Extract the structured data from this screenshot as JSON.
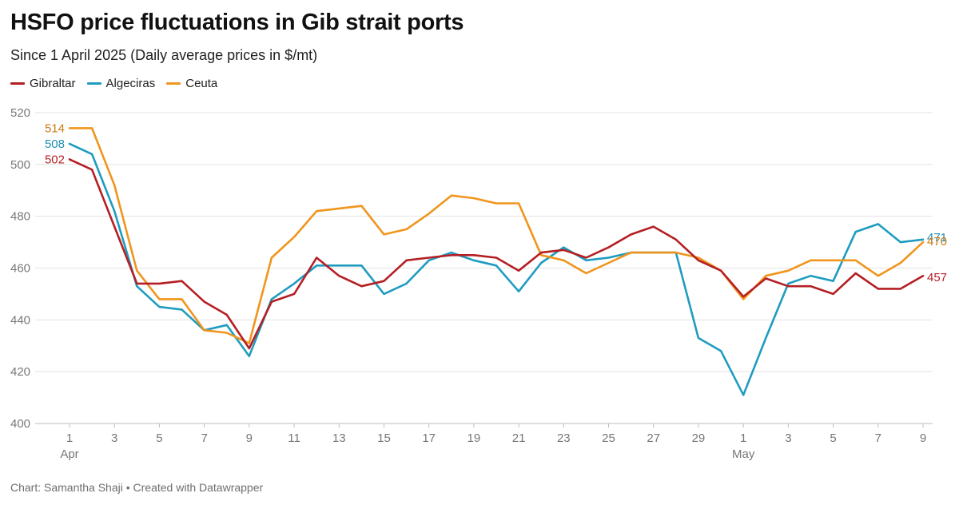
{
  "header": {
    "title": "HSFO price fluctuations in Gib strait ports",
    "subtitle": "Since 1 April 2025 (Daily average prices in $/mt)"
  },
  "footer": {
    "credit": "Chart: Samantha Shaji • Created with Datawrapper"
  },
  "chart_data": {
    "type": "line",
    "title": "HSFO price fluctuations in Gib strait ports",
    "subtitle": "Since 1 April 2025 (Daily average prices in $/mt)",
    "xlabel": "",
    "ylabel": "",
    "ylim": [
      400,
      520
    ],
    "yticks": [
      400,
      420,
      440,
      460,
      480,
      500,
      520
    ],
    "grid": true,
    "legend_position": "top-left",
    "x": [
      "Apr 1",
      "Apr 2",
      "Apr 3",
      "Apr 4",
      "Apr 5",
      "Apr 6",
      "Apr 7",
      "Apr 8",
      "Apr 9",
      "Apr 10",
      "Apr 11",
      "Apr 12",
      "Apr 13",
      "Apr 14",
      "Apr 15",
      "Apr 16",
      "Apr 17",
      "Apr 18",
      "Apr 19",
      "Apr 20",
      "Apr 21",
      "Apr 22",
      "Apr 23",
      "Apr 24",
      "Apr 25",
      "Apr 26",
      "Apr 27",
      "Apr 28",
      "Apr 29",
      "Apr 30",
      "May 1",
      "May 2",
      "May 3",
      "May 4",
      "May 5",
      "May 6",
      "May 7",
      "May 8",
      "May 9"
    ],
    "xtick_labels": [
      "1",
      "3",
      "5",
      "7",
      "9",
      "11",
      "13",
      "15",
      "17",
      "19",
      "21",
      "23",
      "25",
      "27",
      "29",
      "1",
      "3",
      "5",
      "7",
      "9"
    ],
    "xtick_indices": [
      0,
      2,
      4,
      6,
      8,
      10,
      12,
      14,
      16,
      18,
      20,
      22,
      24,
      26,
      28,
      30,
      32,
      34,
      36,
      38
    ],
    "month_labels": [
      {
        "label": "Apr",
        "index": 0
      },
      {
        "label": "May",
        "index": 30
      }
    ],
    "series": [
      {
        "name": "Gibraltar",
        "color": "#b51f24",
        "values": [
          502,
          498,
          476,
          454,
          454,
          455,
          447,
          442,
          429,
          447,
          450,
          464,
          457,
          453,
          455,
          463,
          464,
          465,
          465,
          464,
          459,
          466,
          467,
          464,
          468,
          473,
          476,
          471,
          463,
          459,
          449,
          456,
          453,
          453,
          450,
          458,
          452,
          452,
          457
        ],
        "start_label": "502",
        "end_label": "457"
      },
      {
        "name": "Algeciras",
        "color": "#1f9cc0",
        "values": [
          508,
          504,
          482,
          453,
          445,
          444,
          436,
          438,
          426,
          448,
          454,
          461,
          461,
          461,
          450,
          454,
          463,
          466,
          463,
          461,
          451,
          462,
          468,
          463,
          464,
          466,
          466,
          466,
          433,
          428,
          411,
          433,
          454,
          457,
          455,
          474,
          477,
          470,
          471
        ],
        "start_label": "508",
        "end_label": "471"
      },
      {
        "name": "Ceuta",
        "color": "#f0951d",
        "values": [
          514,
          514,
          492,
          459,
          448,
          448,
          436,
          435,
          431,
          464,
          472,
          482,
          483,
          484,
          473,
          475,
          481,
          488,
          487,
          485,
          485,
          465,
          463,
          458,
          462,
          466,
          466,
          466,
          464,
          459,
          448,
          457,
          459,
          463,
          463,
          463,
          457,
          462,
          470
        ],
        "start_label": "514",
        "end_label": "470"
      }
    ]
  },
  "colors": {
    "gibraltar_label": "#b51f24",
    "algeciras_label": "#1f8db0",
    "ceuta_label": "#c97a10",
    "grid": "#e3e3e3",
    "axis_text": "#777777"
  }
}
